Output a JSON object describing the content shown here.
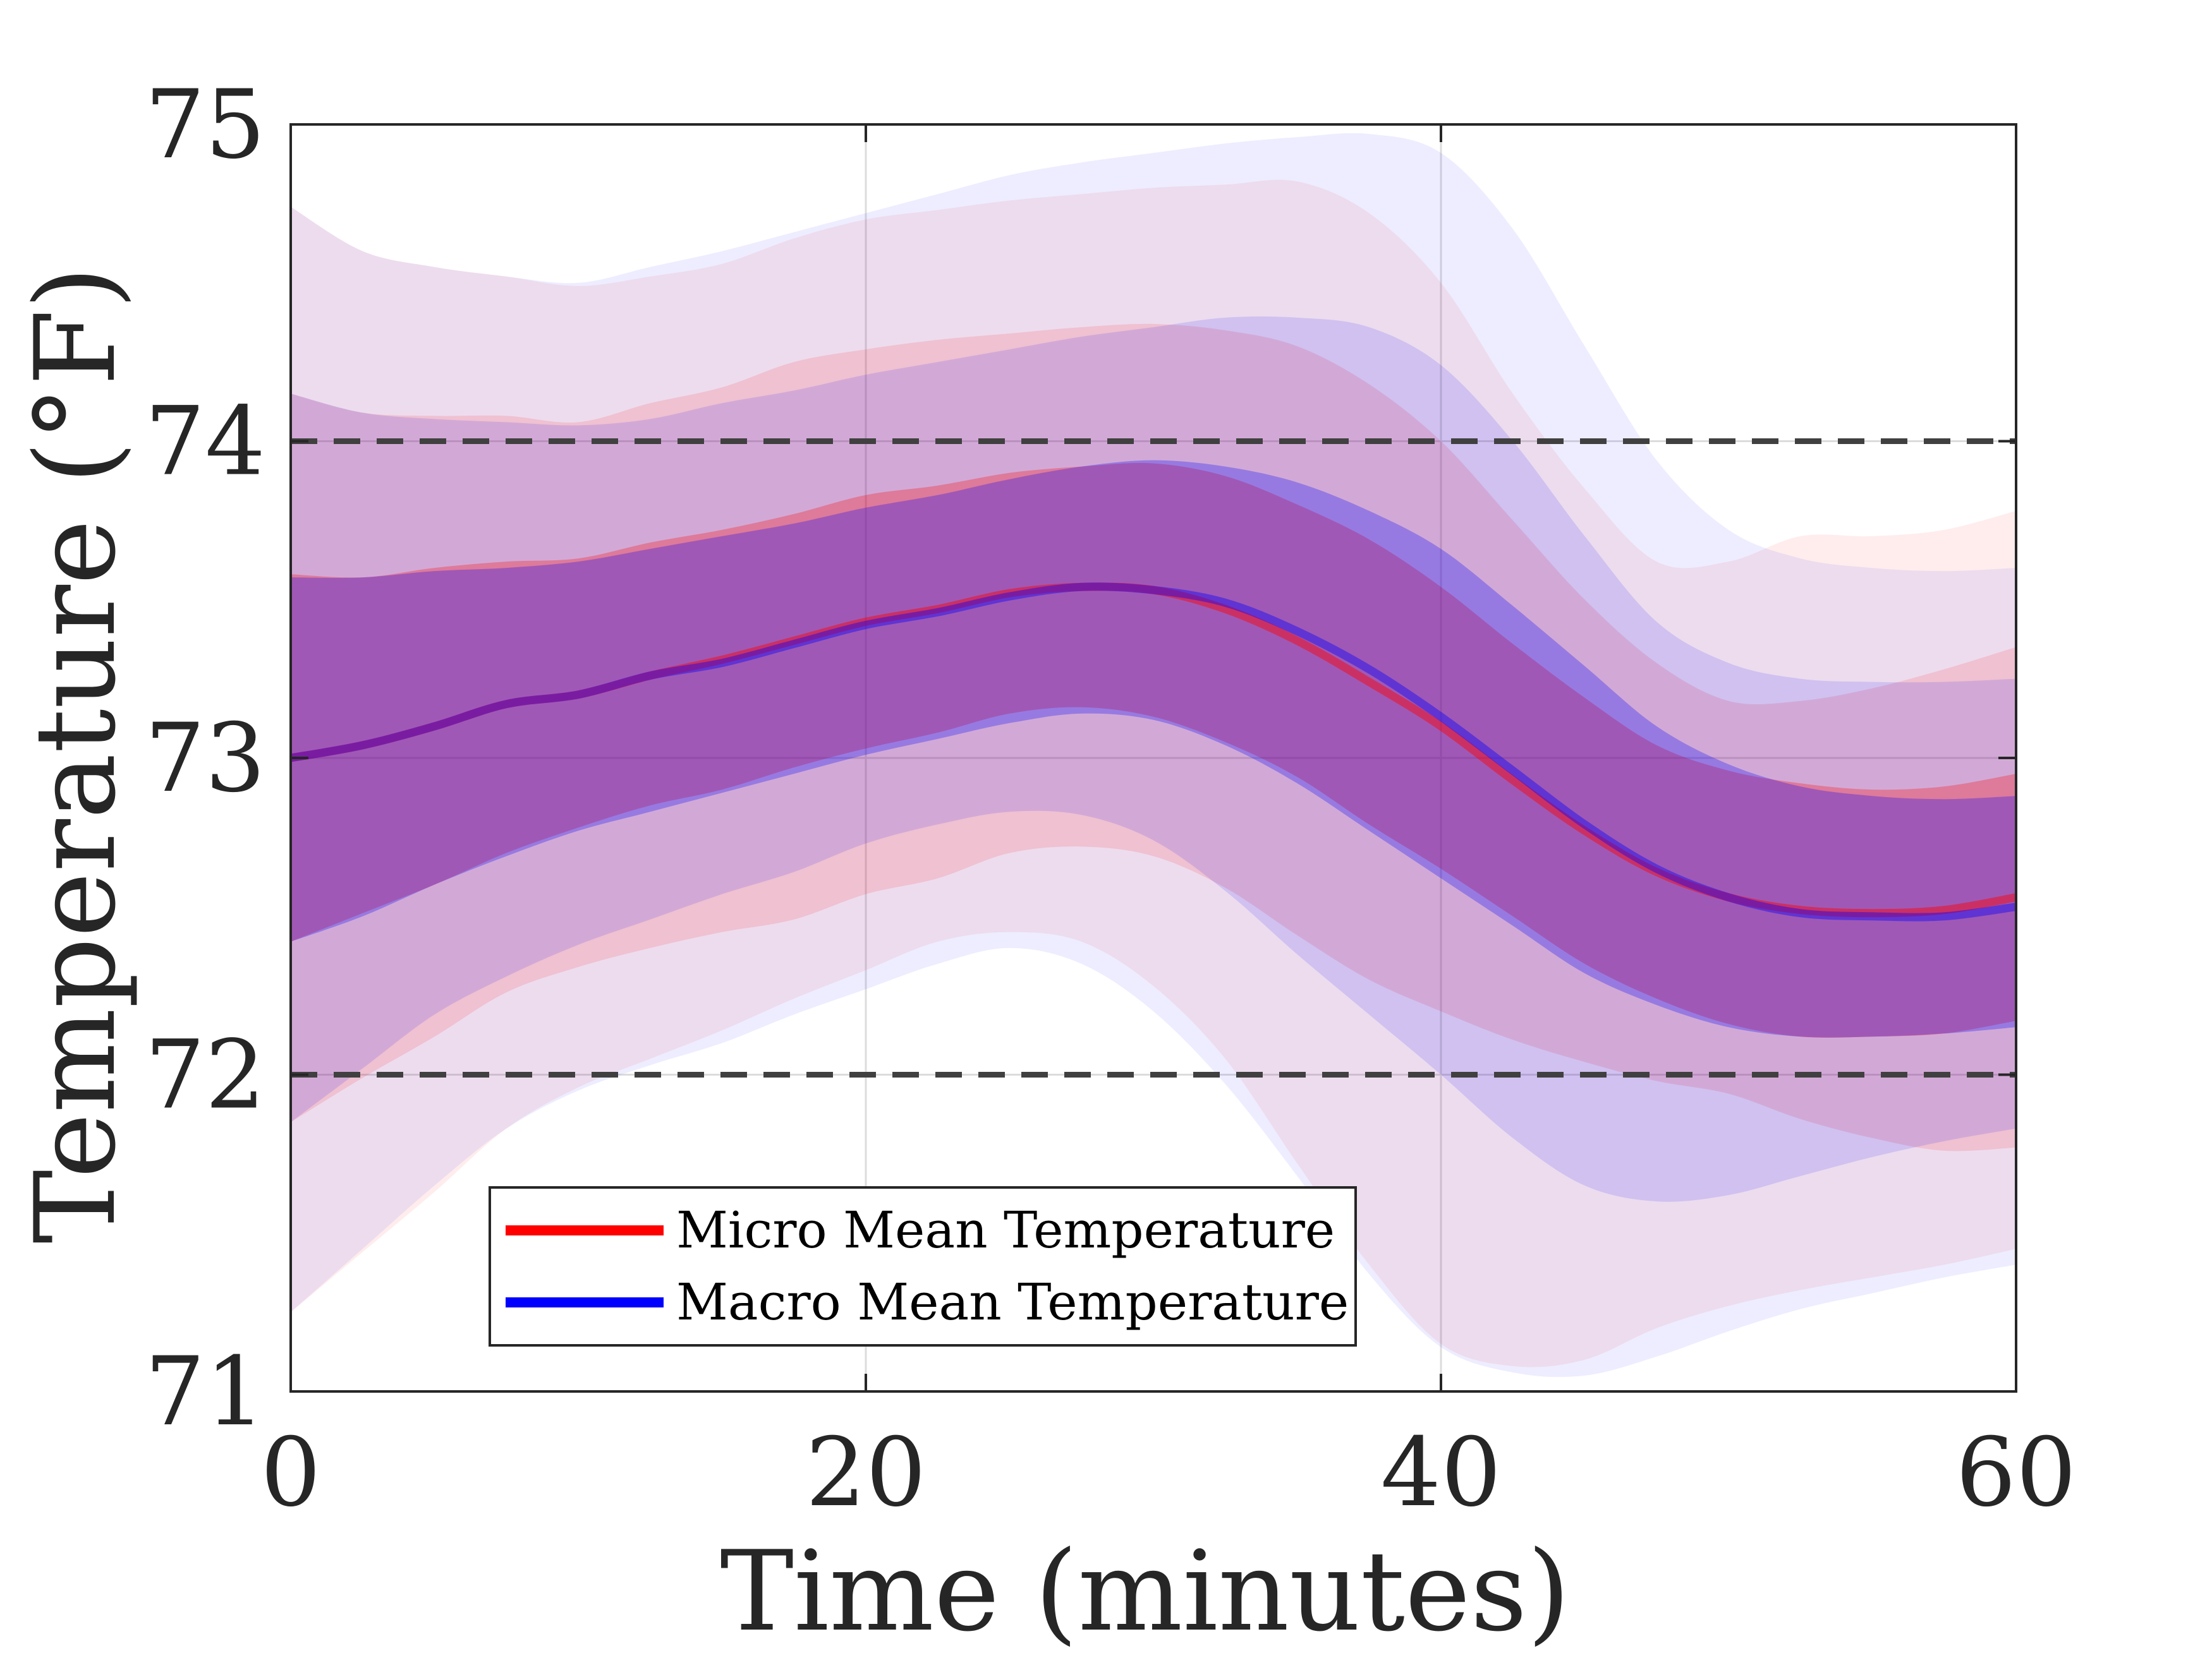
{
  "chart_data": {
    "type": "line",
    "title": "",
    "xlabel": "Time (minutes)",
    "ylabel": "Temperature (°F)",
    "xlim": [
      0,
      60
    ],
    "ylim": [
      71,
      75
    ],
    "xticks": [
      0,
      20,
      40,
      60
    ],
    "yticks": [
      71,
      72,
      73,
      74,
      75
    ],
    "grid": true,
    "reference_lines": [
      72,
      74
    ],
    "legend_position": "bottom-left",
    "x": [
      0,
      2.5,
      5,
      7.5,
      10,
      12.5,
      15,
      17.5,
      20,
      22.5,
      25,
      27.5,
      30,
      32.5,
      35,
      37.5,
      40,
      42.5,
      45,
      47.5,
      50,
      52.5,
      55,
      57.5,
      60
    ],
    "series": [
      {
        "name": "Micro Mean Temperature",
        "color": "#ff0000",
        "mean": [
          73.0,
          73.04,
          73.1,
          73.17,
          73.2,
          73.26,
          73.31,
          73.37,
          73.43,
          73.47,
          73.52,
          73.54,
          73.53,
          73.47,
          73.37,
          73.24,
          73.1,
          72.93,
          72.77,
          72.64,
          72.56,
          72.52,
          72.51,
          72.52,
          72.56
        ],
        "band_1sd": {
          "upper": [
            73.58,
            73.57,
            73.6,
            73.62,
            73.63,
            73.68,
            73.72,
            73.77,
            73.83,
            73.86,
            73.9,
            73.92,
            73.93,
            73.89,
            73.8,
            73.69,
            73.54,
            73.36,
            73.19,
            73.04,
            72.96,
            72.92,
            72.9,
            72.91,
            72.95
          ],
          "lower": [
            72.42,
            72.51,
            72.6,
            72.7,
            72.78,
            72.85,
            72.9,
            72.97,
            73.03,
            73.08,
            73.14,
            73.16,
            73.13,
            73.05,
            72.94,
            72.79,
            72.65,
            72.5,
            72.35,
            72.24,
            72.16,
            72.12,
            72.12,
            72.13,
            72.17
          ]
        },
        "band_2sd": {
          "upper": [
            74.15,
            74.09,
            74.08,
            74.08,
            74.06,
            74.12,
            74.17,
            74.25,
            74.29,
            74.32,
            74.34,
            74.36,
            74.37,
            74.35,
            74.3,
            74.18,
            74.0,
            73.75,
            73.5,
            73.3,
            73.18,
            73.18,
            73.22,
            73.28,
            73.35
          ]
        },
        "band_3sd": {
          "upper": [
            74.74,
            74.6,
            74.55,
            74.52,
            74.49,
            74.52,
            74.56,
            74.64,
            74.7,
            74.73,
            74.76,
            74.78,
            74.8,
            74.81,
            74.82,
            74.72,
            74.5,
            74.15,
            73.85,
            73.62,
            73.62,
            73.7,
            73.7,
            73.72,
            73.78
          ],
          "lower": [
            71.25,
            71.44,
            71.63,
            71.83,
            71.96,
            72.05,
            72.14,
            72.24,
            72.33,
            72.42,
            72.45,
            72.42,
            72.28,
            72.05,
            71.72,
            71.4,
            71.15,
            71.08,
            71.1,
            71.2,
            71.27,
            71.32,
            71.36,
            71.4,
            71.45
          ]
        }
      },
      {
        "name": "Macro Mean Temperature",
        "color": "#0000ff",
        "mean": [
          73.0,
          73.04,
          73.1,
          73.17,
          73.2,
          73.26,
          73.3,
          73.36,
          73.42,
          73.46,
          73.51,
          73.54,
          73.53,
          73.49,
          73.4,
          73.28,
          73.13,
          72.96,
          72.79,
          72.65,
          72.56,
          72.51,
          72.5,
          72.5,
          72.53
        ],
        "band_1sd": {
          "upper": [
            73.57,
            73.57,
            73.59,
            73.6,
            73.62,
            73.66,
            73.7,
            73.74,
            73.79,
            73.83,
            73.88,
            73.92,
            73.94,
            73.92,
            73.87,
            73.78,
            73.66,
            73.48,
            73.29,
            73.1,
            72.98,
            72.91,
            72.88,
            72.87,
            72.88
          ],
          "lower": [
            72.42,
            72.5,
            72.6,
            72.69,
            72.77,
            72.83,
            72.89,
            72.95,
            73.01,
            73.06,
            73.11,
            73.14,
            73.12,
            73.04,
            72.92,
            72.77,
            72.62,
            72.47,
            72.32,
            72.22,
            72.15,
            72.12,
            72.12,
            72.13,
            72.15
          ]
        },
        "band_2sd": {
          "upper": [
            74.15,
            74.09,
            74.07,
            74.06,
            74.05,
            74.07,
            74.12,
            74.16,
            74.21,
            74.25,
            74.29,
            74.33,
            74.36,
            74.39,
            74.39,
            74.36,
            74.24,
            74.0,
            73.7,
            73.43,
            73.3,
            73.25,
            73.24,
            73.24,
            73.25
          ],
          "lower": [
            71.85,
            72.02,
            72.19,
            72.31,
            72.41,
            72.49,
            72.57,
            72.64,
            72.73,
            72.79,
            72.83,
            72.82,
            72.74,
            72.58,
            72.38,
            72.19,
            72.0,
            71.8,
            71.65,
            71.6,
            71.62,
            71.68,
            71.74,
            71.79,
            71.83
          ]
        },
        "band_3sd": {
          "upper": [
            74.74,
            74.6,
            74.55,
            74.52,
            74.5,
            74.55,
            74.6,
            74.66,
            74.72,
            74.78,
            74.84,
            74.88,
            74.91,
            74.94,
            74.96,
            74.97,
            74.91,
            74.67,
            74.3,
            73.94,
            73.72,
            73.63,
            73.6,
            73.59,
            73.6
          ],
          "lower": [
            71.25,
            71.45,
            71.65,
            71.83,
            71.95,
            72.03,
            72.1,
            72.19,
            72.27,
            72.35,
            72.4,
            72.35,
            72.2,
            71.97,
            71.68,
            71.37,
            71.14,
            71.06,
            71.05,
            71.11,
            71.19,
            71.26,
            71.31,
            71.36,
            71.4
          ]
        }
      }
    ]
  }
}
